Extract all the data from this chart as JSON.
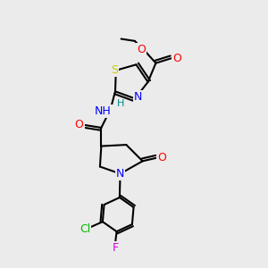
{
  "bg_color": "#ebebeb",
  "bond_color": "#000000",
  "bond_width": 1.5,
  "atom_colors": {
    "C": "#000000",
    "N": "#0000ff",
    "O": "#ff0000",
    "S": "#cccc00",
    "Cl": "#00bb00",
    "F": "#dd00dd",
    "H": "#008888"
  },
  "font_size": 8,
  "fig_size": [
    3.0,
    3.0
  ],
  "dpi": 100
}
